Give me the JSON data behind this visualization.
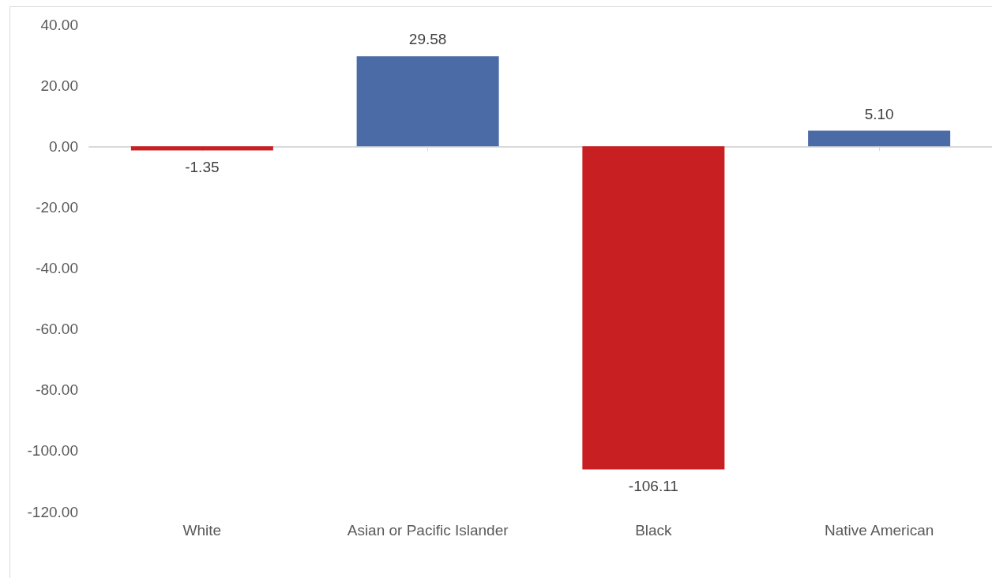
{
  "chart_data": {
    "type": "bar",
    "categories": [
      "White",
      "Asian or Pacific Islander",
      "Black",
      "Native American"
    ],
    "values": [
      -1.35,
      29.58,
      -106.11,
      5.1
    ],
    "colors": [
      "#c82022",
      "#4a6ba6",
      "#c82022",
      "#4a6ba6"
    ],
    "value_labels": [
      "-1.35",
      "29.58",
      "-106.11",
      "5.10"
    ],
    "ylim": [
      -120,
      40
    ],
    "yticks": [
      {
        "value": -120,
        "label": "-120.00"
      },
      {
        "value": -100,
        "label": "-100.00"
      },
      {
        "value": -80,
        "label": "-80.00"
      },
      {
        "value": -60,
        "label": "-60.00"
      },
      {
        "value": -40,
        "label": "-40.00"
      },
      {
        "value": -20,
        "label": "-20.00"
      },
      {
        "value": 0,
        "label": "0.00"
      },
      {
        "value": 20,
        "label": "20.00"
      },
      {
        "value": 40,
        "label": "40.00"
      }
    ]
  }
}
